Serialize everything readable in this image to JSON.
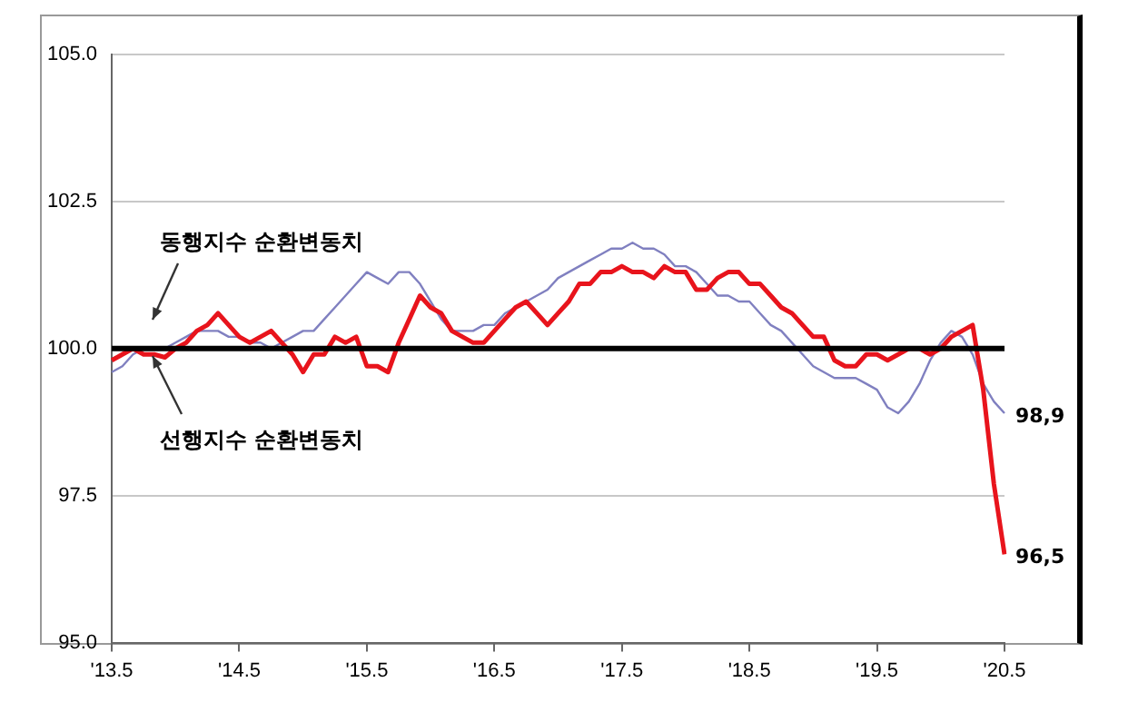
{
  "chart_data": {
    "type": "line",
    "categories": [
      "'13.5",
      null,
      null,
      null,
      null,
      null,
      null,
      null,
      null,
      null,
      null,
      null,
      "'14.5",
      null,
      null,
      null,
      null,
      null,
      null,
      null,
      null,
      null,
      null,
      null,
      "'15.5",
      null,
      null,
      null,
      null,
      null,
      null,
      null,
      null,
      null,
      null,
      null,
      "'16.5",
      null,
      null,
      null,
      null,
      null,
      null,
      null,
      null,
      null,
      null,
      null,
      "'17.5",
      null,
      null,
      null,
      null,
      null,
      null,
      null,
      null,
      null,
      null,
      null,
      "'18.5",
      null,
      null,
      null,
      null,
      null,
      null,
      null,
      null,
      null,
      null,
      null,
      "'19.5",
      null,
      null,
      null,
      null,
      null,
      null,
      null,
      null,
      null,
      null,
      null,
      "'20.5"
    ],
    "series": [
      {
        "color": "#e8141c",
        "values": [
          99.8,
          99.9,
          100.0,
          99.9,
          99.9,
          99.85,
          100.0,
          100.1,
          100.3,
          100.4,
          100.6,
          100.4,
          100.2,
          100.1,
          100.2,
          100.3,
          100.1,
          99.9,
          99.6,
          99.9,
          99.9,
          100.2,
          100.1,
          100.2,
          99.7,
          99.7,
          99.6,
          100.1,
          100.5,
          100.9,
          100.7,
          100.6,
          100.3,
          100.2,
          100.1,
          100.1,
          100.3,
          100.5,
          100.7,
          100.8,
          100.6,
          100.4,
          100.6,
          100.8,
          101.1,
          101.1,
          101.3,
          101.3,
          101.4,
          101.3,
          101.3,
          101.2,
          101.4,
          101.3,
          101.3,
          101.0,
          101.0,
          101.2,
          101.3,
          101.3,
          101.1,
          101.1,
          100.9,
          100.7,
          100.6,
          100.4,
          100.2,
          100.2,
          99.8,
          99.7,
          99.7,
          99.9,
          99.9,
          99.8,
          99.9,
          100.0,
          100.0,
          99.9,
          100.0,
          100.2,
          100.3,
          100.4,
          99.3,
          97.7,
          96.5
        ],
        "value_labels": [
          null,
          null,
          null,
          null,
          null,
          null,
          null,
          null,
          null,
          null,
          null,
          null,
          null,
          null,
          null,
          null,
          null,
          null,
          null,
          null,
          null,
          null,
          null,
          null,
          null,
          null,
          null,
          null,
          null,
          null,
          null,
          null,
          null,
          null,
          null,
          null,
          null,
          null,
          null,
          null,
          null,
          null,
          null,
          null,
          null,
          null,
          null,
          null,
          null,
          null,
          null,
          null,
          null,
          null,
          null,
          null,
          null,
          null,
          null,
          null,
          null,
          null,
          null,
          null,
          null,
          null,
          null,
          null,
          null,
          null,
          null,
          null,
          null,
          null,
          null,
          null,
          null,
          null,
          null,
          null,
          null,
          null,
          null,
          null,
          "96,5"
        ]
      },
      {
        "color": "#8080c0",
        "values": [
          99.6,
          99.7,
          99.9,
          100.0,
          100.0,
          100.0,
          100.1,
          100.2,
          100.3,
          100.3,
          100.3,
          100.2,
          100.2,
          100.1,
          100.1,
          100.0,
          100.1,
          100.2,
          100.3,
          100.3,
          100.5,
          100.7,
          100.9,
          101.1,
          101.3,
          101.2,
          101.1,
          101.3,
          101.3,
          101.1,
          100.8,
          100.5,
          100.3,
          100.3,
          100.3,
          100.4,
          100.4,
          100.6,
          100.7,
          100.8,
          100.9,
          101.0,
          101.2,
          101.3,
          101.4,
          101.5,
          101.6,
          101.7,
          101.7,
          101.8,
          101.7,
          101.7,
          101.6,
          101.4,
          101.4,
          101.3,
          101.1,
          100.9,
          100.9,
          100.8,
          100.8,
          100.6,
          100.4,
          100.3,
          100.1,
          99.9,
          99.7,
          99.6,
          99.5,
          99.5,
          99.5,
          99.4,
          99.3,
          99.0,
          98.9,
          99.1,
          99.4,
          99.8,
          100.1,
          100.3,
          100.2,
          99.9,
          99.4,
          99.1,
          98.9
        ],
        "value_labels": [
          null,
          null,
          null,
          null,
          null,
          null,
          null,
          null,
          null,
          null,
          null,
          null,
          null,
          null,
          null,
          null,
          null,
          null,
          null,
          null,
          null,
          null,
          null,
          null,
          null,
          null,
          null,
          null,
          null,
          null,
          null,
          null,
          null,
          null,
          null,
          null,
          null,
          null,
          null,
          null,
          null,
          null,
          null,
          null,
          null,
          null,
          null,
          null,
          null,
          null,
          null,
          null,
          null,
          null,
          null,
          null,
          null,
          null,
          null,
          null,
          null,
          null,
          null,
          null,
          null,
          null,
          null,
          null,
          null,
          null,
          null,
          null,
          null,
          null,
          null,
          null,
          null,
          null,
          null,
          null,
          null,
          null,
          null,
          null,
          "98,9"
        ]
      }
    ],
    "ylim": [
      95,
      105
    ],
    "yticks": [
      {
        "value": 95,
        "label": "95.0"
      },
      {
        "value": 97.5,
        "label": "97.5"
      },
      {
        "value": 100,
        "label": "100.0"
      },
      {
        "value": 102.5,
        "label": "102.5"
      },
      {
        "value": 105,
        "label": "105.0"
      }
    ],
    "grid": "y",
    "legend": false,
    "ref_lines": [
      {
        "axis": "y",
        "value": 100,
        "color": "#000000"
      }
    ],
    "annotations": [
      "동행지수 순환변동치",
      "선행지수 순환변동치"
    ]
  }
}
